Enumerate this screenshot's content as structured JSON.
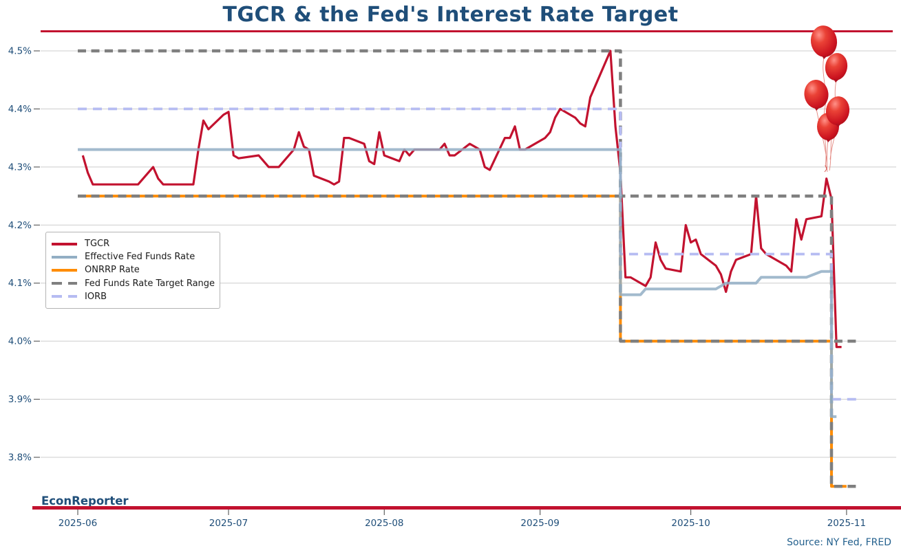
{
  "title": "TGCR & the Fed's Interest Rate Target",
  "branding": "EconReporter",
  "source": "Source: NY Fed, FRED",
  "colors": {
    "accent_rule": "#C2122F",
    "title_navy": "#1F4E79",
    "source_blue": "#24618E",
    "gridline": "#CCCCCC",
    "tick_mark": "#606060",
    "legend_text": "#1A1A1A"
  },
  "chart_data": {
    "type": "line",
    "title": "TGCR & the Fed's Interest Rate Target",
    "unit": "percent",
    "grid": "horizontal-only",
    "legend_position": "center-left",
    "x_domain": [
      "2025-06-01",
      "2025-11-05"
    ],
    "ylim": [
      3.72,
      4.55
    ],
    "x_ticks": [
      {
        "label": "2025-06",
        "date": "2025-06-01"
      },
      {
        "label": "2025-07",
        "date": "2025-07-01"
      },
      {
        "label": "2025-08",
        "date": "2025-08-01"
      },
      {
        "label": "2025-09",
        "date": "2025-09-01"
      },
      {
        "label": "2025-10",
        "date": "2025-10-01"
      },
      {
        "label": "2025-11",
        "date": "2025-11-01"
      }
    ],
    "y_ticks": [
      {
        "label": "4.5%",
        "value": 4.5
      },
      {
        "label": "4.4%",
        "value": 4.4
      },
      {
        "label": "4.3%",
        "value": 4.3
      },
      {
        "label": "4.2%",
        "value": 4.2
      },
      {
        "label": "4.1%",
        "value": 4.1
      },
      {
        "label": "4.0%",
        "value": 4.0
      },
      {
        "label": "3.9%",
        "value": 3.9
      },
      {
        "label": "3.8%",
        "value": 3.8
      }
    ],
    "legend": [
      {
        "label": "TGCR",
        "series": "tgcr"
      },
      {
        "label": "Effective Fed Funds Rate",
        "series": "effr"
      },
      {
        "label": "ONRRP Rate",
        "series": "onrrp"
      },
      {
        "label": "Fed Funds Rate Target Range",
        "series": "target_upper"
      },
      {
        "label": "IORB",
        "series": "iorb"
      }
    ],
    "series": {
      "tgcr": {
        "name": "TGCR",
        "color": "#C2122F",
        "line": "solid",
        "points": [
          [
            "2025-06-02",
            4.32
          ],
          [
            "2025-06-03",
            4.29
          ],
          [
            "2025-06-04",
            4.27
          ],
          [
            "2025-06-05",
            4.27
          ],
          [
            "2025-06-06",
            4.27
          ],
          [
            "2025-06-09",
            4.27
          ],
          [
            "2025-06-10",
            4.27
          ],
          [
            "2025-06-11",
            4.27
          ],
          [
            "2025-06-12",
            4.27
          ],
          [
            "2025-06-13",
            4.27
          ],
          [
            "2025-06-16",
            4.3
          ],
          [
            "2025-06-17",
            4.28
          ],
          [
            "2025-06-18",
            4.27
          ],
          [
            "2025-06-19",
            4.27
          ],
          [
            "2025-06-20",
            4.27
          ],
          [
            "2025-06-23",
            4.27
          ],
          [
            "2025-06-24",
            4.27
          ],
          [
            "2025-06-25",
            4.33
          ],
          [
            "2025-06-26",
            4.38
          ],
          [
            "2025-06-27",
            4.365
          ],
          [
            "2025-06-30",
            4.39
          ],
          [
            "2025-07-01",
            4.395
          ],
          [
            "2025-07-02",
            4.32
          ],
          [
            "2025-07-03",
            4.315
          ],
          [
            "2025-07-07",
            4.32
          ],
          [
            "2025-07-08",
            4.31
          ],
          [
            "2025-07-09",
            4.3
          ],
          [
            "2025-07-10",
            4.3
          ],
          [
            "2025-07-11",
            4.3
          ],
          [
            "2025-07-14",
            4.33
          ],
          [
            "2025-07-15",
            4.36
          ],
          [
            "2025-07-16",
            4.335
          ],
          [
            "2025-07-17",
            4.33
          ],
          [
            "2025-07-18",
            4.285
          ],
          [
            "2025-07-21",
            4.275
          ],
          [
            "2025-07-22",
            4.27
          ],
          [
            "2025-07-23",
            4.275
          ],
          [
            "2025-07-24",
            4.35
          ],
          [
            "2025-07-25",
            4.35
          ],
          [
            "2025-07-28",
            4.34
          ],
          [
            "2025-07-29",
            4.31
          ],
          [
            "2025-07-30",
            4.305
          ],
          [
            "2025-07-31",
            4.36
          ],
          [
            "2025-08-01",
            4.32
          ],
          [
            "2025-08-04",
            4.31
          ],
          [
            "2025-08-05",
            4.33
          ],
          [
            "2025-08-06",
            4.32
          ],
          [
            "2025-08-07",
            4.33
          ],
          [
            "2025-08-08",
            4.33
          ],
          [
            "2025-08-11",
            4.33
          ],
          [
            "2025-08-12",
            4.33
          ],
          [
            "2025-08-13",
            4.34
          ],
          [
            "2025-08-14",
            4.32
          ],
          [
            "2025-08-15",
            4.32
          ],
          [
            "2025-08-18",
            4.34
          ],
          [
            "2025-08-19",
            4.335
          ],
          [
            "2025-08-20",
            4.33
          ],
          [
            "2025-08-21",
            4.3
          ],
          [
            "2025-08-22",
            4.295
          ],
          [
            "2025-08-25",
            4.35
          ],
          [
            "2025-08-26",
            4.35
          ],
          [
            "2025-08-27",
            4.37
          ],
          [
            "2025-08-28",
            4.33
          ],
          [
            "2025-08-29",
            4.33
          ],
          [
            "2025-09-02",
            4.35
          ],
          [
            "2025-09-03",
            4.36
          ],
          [
            "2025-09-04",
            4.385
          ],
          [
            "2025-09-05",
            4.4
          ],
          [
            "2025-09-08",
            4.385
          ],
          [
            "2025-09-09",
            4.375
          ],
          [
            "2025-09-10",
            4.37
          ],
          [
            "2025-09-11",
            4.42
          ],
          [
            "2025-09-12",
            4.44
          ],
          [
            "2025-09-15",
            4.5
          ],
          [
            "2025-09-16",
            4.37
          ],
          [
            "2025-09-17",
            4.29
          ],
          [
            "2025-09-18",
            4.11
          ],
          [
            "2025-09-19",
            4.11
          ],
          [
            "2025-09-22",
            4.095
          ],
          [
            "2025-09-23",
            4.11
          ],
          [
            "2025-09-24",
            4.17
          ],
          [
            "2025-09-25",
            4.14
          ],
          [
            "2025-09-26",
            4.125
          ],
          [
            "2025-09-29",
            4.12
          ],
          [
            "2025-09-30",
            4.2
          ],
          [
            "2025-10-01",
            4.17
          ],
          [
            "2025-10-02",
            4.175
          ],
          [
            "2025-10-03",
            4.15
          ],
          [
            "2025-10-06",
            4.13
          ],
          [
            "2025-10-07",
            4.115
          ],
          [
            "2025-10-08",
            4.085
          ],
          [
            "2025-10-09",
            4.12
          ],
          [
            "2025-10-10",
            4.14
          ],
          [
            "2025-10-13",
            4.15
          ],
          [
            "2025-10-14",
            4.25
          ],
          [
            "2025-10-15",
            4.16
          ],
          [
            "2025-10-16",
            4.15
          ],
          [
            "2025-10-17",
            4.145
          ],
          [
            "2025-10-20",
            4.13
          ],
          [
            "2025-10-21",
            4.12
          ],
          [
            "2025-10-22",
            4.21
          ],
          [
            "2025-10-23",
            4.175
          ],
          [
            "2025-10-24",
            4.21
          ],
          [
            "2025-10-27",
            4.215
          ],
          [
            "2025-10-28",
            4.28
          ],
          [
            "2025-10-29",
            4.245
          ],
          [
            "2025-10-30",
            3.99
          ],
          [
            "2025-10-31",
            3.99
          ]
        ]
      },
      "effr": {
        "name": "Effective Fed Funds Rate",
        "color": "#92AEC4",
        "line": "solid",
        "points": [
          [
            "2025-06-01",
            4.33
          ],
          [
            "2025-09-17",
            4.33
          ],
          [
            "2025-09-17",
            4.08
          ],
          [
            "2025-09-21",
            4.08
          ],
          [
            "2025-09-22",
            4.09
          ],
          [
            "2025-10-06",
            4.09
          ],
          [
            "2025-10-08",
            4.1
          ],
          [
            "2025-10-14",
            4.1
          ],
          [
            "2025-10-15",
            4.11
          ],
          [
            "2025-10-24",
            4.11
          ],
          [
            "2025-10-27",
            4.12
          ],
          [
            "2025-10-29",
            4.12
          ],
          [
            "2025-10-29",
            3.87
          ],
          [
            "2025-10-30",
            3.87
          ]
        ]
      },
      "onrrp": {
        "name": "ONRRP Rate",
        "color": "#FF8C00",
        "line": "solid",
        "points": [
          [
            "2025-06-01",
            4.25
          ],
          [
            "2025-09-17",
            4.25
          ],
          [
            "2025-09-17",
            4.0
          ],
          [
            "2025-10-29",
            4.0
          ],
          [
            "2025-10-29",
            3.75
          ],
          [
            "2025-11-01",
            3.75
          ]
        ]
      },
      "target_upper": {
        "name": "Fed Funds Rate Target Range (upper)",
        "color": "#7F7F7F",
        "line": "dashed",
        "points": [
          [
            "2025-06-01",
            4.5
          ],
          [
            "2025-09-17",
            4.5
          ],
          [
            "2025-09-17",
            4.25
          ],
          [
            "2025-10-29",
            4.25
          ],
          [
            "2025-10-29",
            4.0
          ],
          [
            "2025-11-03",
            4.0
          ]
        ]
      },
      "target_lower": {
        "name": "Fed Funds Rate Target Range (lower)",
        "color": "#7F7F7F",
        "line": "dashed",
        "points": [
          [
            "2025-06-01",
            4.25
          ],
          [
            "2025-09-17",
            4.25
          ],
          [
            "2025-09-17",
            4.0
          ],
          [
            "2025-10-29",
            4.0
          ],
          [
            "2025-10-29",
            3.75
          ],
          [
            "2025-11-03",
            3.75
          ]
        ]
      },
      "iorb": {
        "name": "IORB",
        "color": "#B6BCF2",
        "line": "dashed",
        "points": [
          [
            "2025-06-01",
            4.4
          ],
          [
            "2025-09-17",
            4.4
          ],
          [
            "2025-09-17",
            4.15
          ],
          [
            "2025-10-29",
            4.15
          ],
          [
            "2025-10-29",
            3.9
          ],
          [
            "2025-11-04",
            3.9
          ]
        ]
      }
    }
  }
}
